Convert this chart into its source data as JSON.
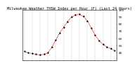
{
  "title": "Milwaukee Weather THSW Index per Hour (F) (Last 24 Hours)",
  "hours": [
    0,
    1,
    2,
    3,
    4,
    5,
    6,
    7,
    8,
    9,
    10,
    11,
    12,
    13,
    14,
    15,
    16,
    17,
    18,
    19,
    20,
    21,
    22,
    23
  ],
  "values": [
    42,
    40,
    39,
    38,
    37,
    38,
    40,
    48,
    58,
    68,
    76,
    84,
    90,
    93,
    94,
    91,
    85,
    75,
    65,
    57,
    52,
    48,
    46,
    43
  ],
  "line_color": "#dd0000",
  "marker_color": "#000000",
  "bg_color": "#ffffff",
  "plot_bg": "#ffffff",
  "grid_color": "#999999",
  "ylim": [
    30,
    100
  ],
  "yticks": [
    40,
    50,
    60,
    70,
    80,
    90,
    100
  ],
  "ytick_labels": [
    "40",
    "50",
    "60",
    "70",
    "80",
    "90",
    "100"
  ],
  "title_fontsize": 3.8,
  "tick_fontsize": 3.2,
  "line_width": 0.7,
  "marker_size": 1.4,
  "dpi": 100
}
